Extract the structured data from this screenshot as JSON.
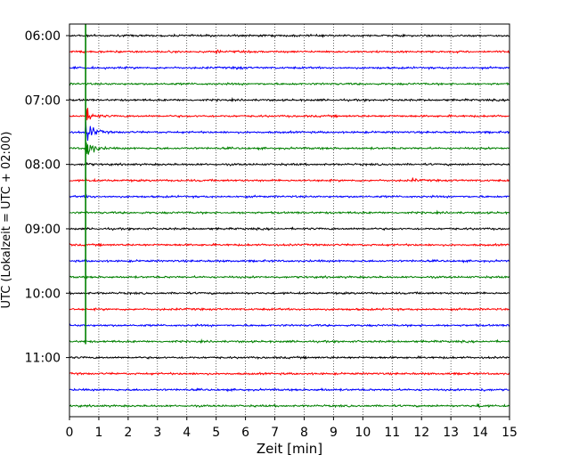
{
  "chart_data": {
    "type": "line",
    "title": "",
    "xlabel": "Zeit  [min]",
    "ylabel": "UTC (Lokalzeit = UTC + 02:00)",
    "xlim": [
      0,
      15
    ],
    "x_ticks": [
      "0",
      "1",
      "2",
      "3",
      "4",
      "5",
      "6",
      "7",
      "8",
      "9",
      "10",
      "11",
      "12",
      "13",
      "14",
      "15"
    ],
    "y_ticks": [
      {
        "label": "06:00",
        "trace": 0
      },
      {
        "label": "07:00",
        "trace": 4
      },
      {
        "label": "08:00",
        "trace": 8
      },
      {
        "label": "09:00",
        "trace": 12
      },
      {
        "label": "10:00",
        "trace": 16
      },
      {
        "label": "11:00",
        "trace": 20
      }
    ],
    "trace_count": 24,
    "trace_interval_min": 15,
    "trace_colors": [
      "#000000",
      "#ff0000",
      "#0000ff",
      "#008000"
    ],
    "grid_x": true,
    "grid_style": "dotted",
    "event_marker": {
      "x": 0.55,
      "color": "#008000",
      "from_trace": 0,
      "to_trace": 19
    },
    "events": [
      {
        "trace": 5,
        "x": 0.55,
        "amplitude": "medium"
      },
      {
        "trace": 6,
        "x": 0.55,
        "amplitude": "large"
      },
      {
        "trace": 7,
        "x": 0.55,
        "amplitude": "large"
      },
      {
        "trace": 8,
        "x": 0.55,
        "amplitude": "small"
      },
      {
        "trace": 9,
        "x": 0.55,
        "amplitude": "small"
      },
      {
        "trace": 10,
        "x": 0.55,
        "amplitude": "small"
      },
      {
        "trace": 1,
        "x": 5.0,
        "amplitude": "small"
      },
      {
        "trace": 2,
        "x": 5.7,
        "amplitude": "small"
      },
      {
        "trace": 9,
        "x": 11.7,
        "amplitude": "small"
      },
      {
        "trace": 22,
        "x": 8.5,
        "amplitude": "small"
      },
      {
        "trace": 22,
        "x": 14.0,
        "amplitude": "small"
      },
      {
        "trace": 23,
        "x": 13.9,
        "amplitude": "small"
      }
    ]
  }
}
